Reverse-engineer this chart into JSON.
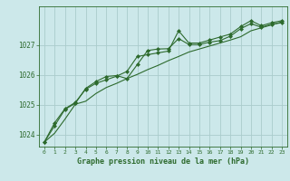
{
  "title": "Graphe pression niveau de la mer (hPa)",
  "bg_color": "#cce8ea",
  "grid_color": "#aacccc",
  "line_color": "#2d6a2d",
  "marker_color": "#2d6a2d",
  "xlim": [
    -0.5,
    23.5
  ],
  "ylim": [
    1023.6,
    1028.3
  ],
  "yticks": [
    1024,
    1025,
    1026,
    1027
  ],
  "xticks": [
    0,
    1,
    2,
    3,
    4,
    5,
    6,
    7,
    8,
    9,
    10,
    11,
    12,
    13,
    14,
    15,
    16,
    17,
    18,
    19,
    20,
    21,
    22,
    23
  ],
  "series1_x": [
    0,
    1,
    2,
    3,
    4,
    5,
    6,
    7,
    8,
    9,
    10,
    11,
    12,
    13,
    14,
    15,
    16,
    17,
    18,
    19,
    20,
    21,
    22,
    23
  ],
  "series1_y": [
    1023.75,
    1024.3,
    1024.85,
    1025.05,
    1025.55,
    1025.78,
    1025.95,
    1025.98,
    1025.88,
    1026.35,
    1026.82,
    1026.87,
    1026.88,
    1027.22,
    1027.02,
    1027.02,
    1027.1,
    1027.15,
    1027.3,
    1027.55,
    1027.72,
    1027.6,
    1027.7,
    1027.75
  ],
  "series2_x": [
    0,
    1,
    2,
    3,
    4,
    5,
    6,
    7,
    8,
    9,
    10,
    11,
    12,
    13,
    14,
    15,
    16,
    17,
    18,
    19,
    20,
    21,
    22,
    23
  ],
  "series2_y": [
    1023.75,
    1024.4,
    1024.87,
    1025.08,
    1025.52,
    1025.72,
    1025.84,
    1025.96,
    1026.12,
    1026.62,
    1026.68,
    1026.74,
    1026.8,
    1027.48,
    1027.07,
    1027.07,
    1027.17,
    1027.27,
    1027.37,
    1027.62,
    1027.82,
    1027.65,
    1027.75,
    1027.82
  ],
  "series3_x": [
    0,
    1,
    2,
    3,
    4,
    5,
    6,
    7,
    8,
    9,
    10,
    11,
    12,
    13,
    14,
    15,
    16,
    17,
    18,
    19,
    20,
    21,
    22,
    23
  ],
  "series3_y": [
    1023.75,
    1024.05,
    1024.52,
    1025.02,
    1025.12,
    1025.38,
    1025.58,
    1025.72,
    1025.88,
    1026.02,
    1026.18,
    1026.32,
    1026.48,
    1026.62,
    1026.77,
    1026.87,
    1026.97,
    1027.07,
    1027.17,
    1027.28,
    1027.48,
    1027.58,
    1027.68,
    1027.78
  ]
}
